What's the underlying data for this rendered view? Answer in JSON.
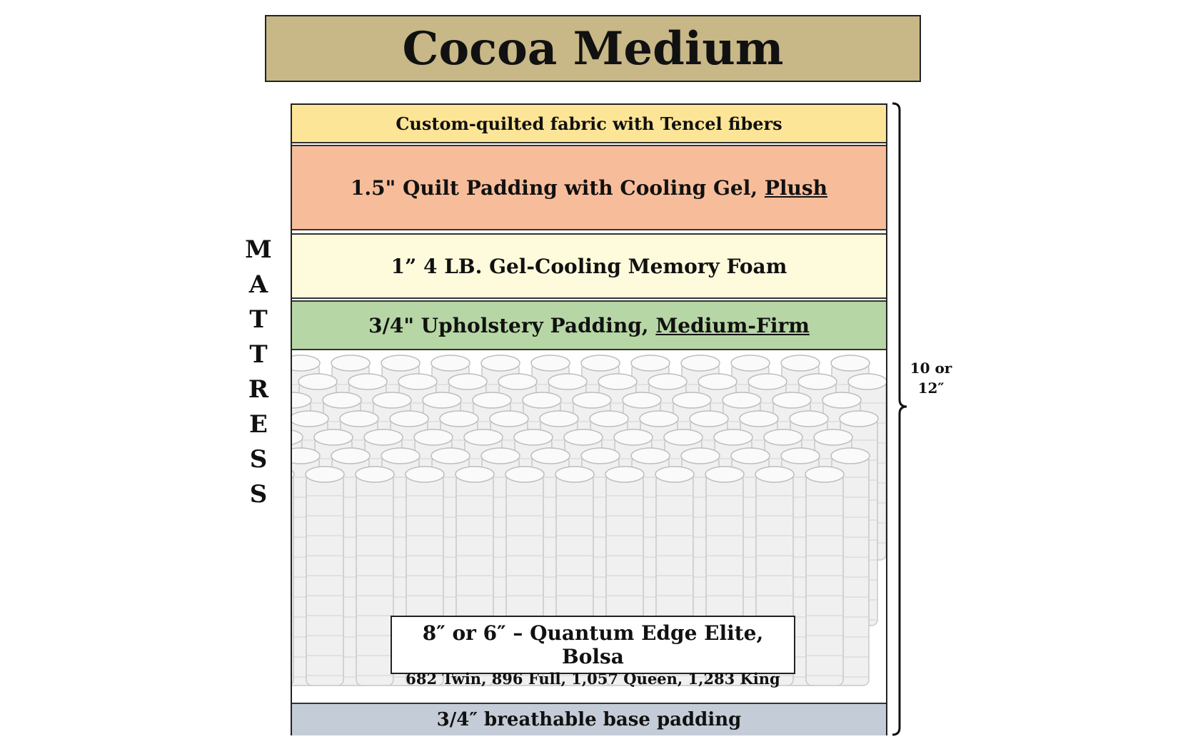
{
  "title": "Cocoa Medium",
  "layers": {
    "fabric": {
      "text": "Custom-quilted fabric with Tencel fibers",
      "color": "#fde598"
    },
    "quilt": {
      "text": "1.5\"  Quilt Padding with Cooling Gel, ",
      "emph": "Plush",
      "color": "#f7bd9b"
    },
    "memory": {
      "text": "1”  4 LB. Gel-Cooling Memory Foam",
      "color": "#fefbdc"
    },
    "upholstery": {
      "text": "3/4\"  Upholstery Padding, ",
      "emph": "Medium-Firm",
      "color": "#b7d6a5"
    },
    "coils": {
      "title": "8″ or 6″ – Quantum Edge Elite, Bolsa",
      "counts": "682 Twin, 896 Full, 1,057 Queen, 1,283 King"
    },
    "base": {
      "text": "3/4″ breathable base padding",
      "color": "#c3ccd7"
    }
  },
  "side_label": [
    "M",
    "A",
    "T",
    "T",
    "R",
    "E",
    "S",
    "S"
  ],
  "height_label": {
    "line1": "10 or",
    "line2": "12″"
  }
}
